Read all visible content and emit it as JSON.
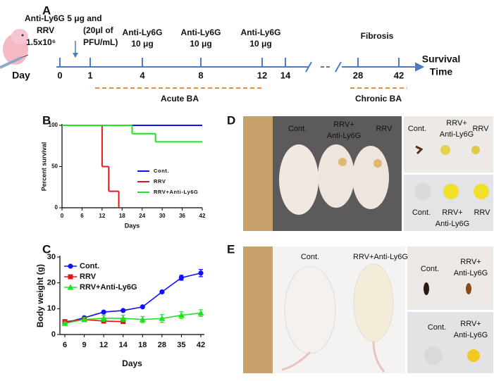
{
  "panel_labels": [
    "A",
    "B",
    "C",
    "D",
    "E"
  ],
  "timeline": {
    "start_label": "Day",
    "days": [
      0,
      1,
      4,
      8,
      12,
      14,
      28,
      42
    ],
    "treatments": [
      {
        "lines": [
          "Anti-Ly6G 5 μg and",
          "RRV",
          "(20μl of",
          "1.5x10⁶",
          "PFU/mL)"
        ]
      },
      {
        "lines": [
          "Anti-Ly6G",
          "10 μg"
        ]
      },
      {
        "lines": [
          "Anti-Ly6G",
          "10 μg"
        ]
      },
      {
        "lines": [
          "Anti-Ly6G",
          "10 μg"
        ]
      }
    ],
    "fibrosis": "Fibrosis",
    "end_label": [
      "Survival",
      "Time"
    ],
    "acute": "Acute BA",
    "chronic": "Chronic BA"
  },
  "chart_data": [
    {
      "type": "line",
      "step": true,
      "xlabel": "Days",
      "ylabel": "Percent survival",
      "xlim": [
        0,
        42
      ],
      "xticks": [
        0,
        6,
        12,
        18,
        24,
        30,
        36,
        42
      ],
      "ylim": [
        0,
        100
      ],
      "yticks": [
        0,
        50,
        100
      ],
      "legend": "right",
      "series": [
        {
          "name": "Cont.",
          "color": "#1010ff",
          "x": [
            0,
            42
          ],
          "values": [
            100,
            100
          ]
        },
        {
          "name": "RRV",
          "color": "#e8141c",
          "x": [
            0,
            12,
            14,
            17
          ],
          "values": [
            100,
            50,
            20,
            0
          ]
        },
        {
          "name": "RRV+Anti-Ly6G",
          "color": "#22e022",
          "x": [
            0,
            21,
            28,
            42
          ],
          "values": [
            100,
            90,
            80,
            80
          ]
        }
      ]
    },
    {
      "type": "line",
      "xlabel": "Days",
      "ylabel": "Body weight (g)",
      "categories": [
        "6",
        "9",
        "12",
        "14",
        "18",
        "28",
        "35",
        "42"
      ],
      "ylim": [
        0,
        30
      ],
      "yticks": [
        0,
        10,
        20,
        30
      ],
      "legend": "upper left",
      "series": [
        {
          "name": "Cont.",
          "color": "#1010ff",
          "marker": "circle",
          "values": [
            4.5,
            6.5,
            8.7,
            9.3,
            10.7,
            16.5,
            22,
            23.8
          ],
          "errors": [
            0.3,
            0.3,
            0.3,
            0.3,
            0.3,
            0.4,
            1.0,
            1.4
          ]
        },
        {
          "name": "RRV",
          "color": "#e8141c",
          "marker": "square",
          "values": [
            5,
            5.8,
            5.2,
            5,
            null,
            null,
            null,
            null
          ],
          "errors": [
            0.3,
            0.3,
            0.3,
            0.3,
            null,
            null,
            null,
            null
          ]
        },
        {
          "name": "RRV+Anti-Ly6G",
          "color": "#22e022",
          "marker": "triangle",
          "values": [
            4.3,
            5.8,
            6.3,
            6.3,
            5.8,
            6.2,
            7.5,
            8.3
          ],
          "errors": [
            0.5,
            0.8,
            1.2,
            1.2,
            1.2,
            1.5,
            1.3,
            1.3
          ]
        }
      ]
    }
  ],
  "photos": {
    "D": [
      {
        "lines": [
          "Cont."
        ]
      },
      {
        "lines": [
          "RRV+",
          "Anti-Ly6G"
        ]
      },
      {
        "lines": [
          "RRV"
        ]
      },
      {
        "lines": [
          "Cont."
        ]
      },
      {
        "lines": [
          "RRV+",
          "Anti-Ly6G"
        ]
      },
      {
        "lines": [
          "RRV"
        ]
      },
      {
        "lines": [
          "Cont."
        ]
      },
      {
        "lines": [
          "RRV+",
          "Anti-Ly6G"
        ]
      },
      {
        "lines": [
          "RRV"
        ]
      }
    ],
    "E": [
      {
        "lines": [
          "Cont."
        ]
      },
      {
        "lines": [
          "RRV+Anti-Ly6G"
        ]
      },
      {
        "lines": [
          "Cont."
        ]
      },
      {
        "lines": [
          "RRV+",
          "Anti-Ly6G"
        ]
      },
      {
        "lines": [
          "Cont."
        ]
      },
      {
        "lines": [
          "RRV+",
          "Anti-Ly6G"
        ]
      }
    ]
  }
}
